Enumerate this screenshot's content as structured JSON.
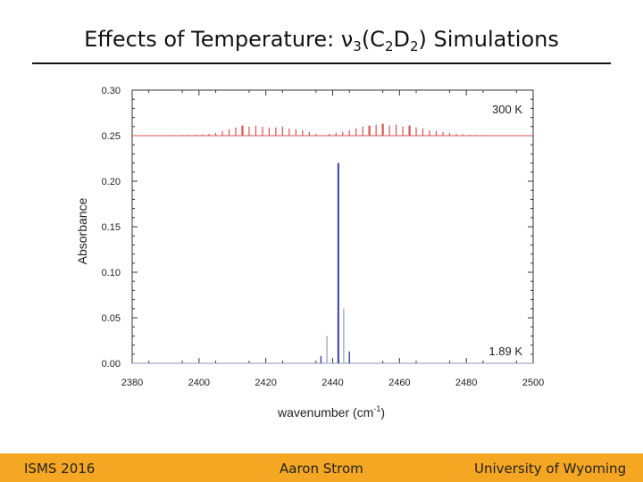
{
  "slide": {
    "title_prefix": "Effects of Temperature: ",
    "title_symbol": "ν",
    "title_sub1": "3",
    "title_mid1": "(C",
    "title_sub2": "2",
    "title_mid2": "D",
    "title_sub3": "2",
    "title_suffix": ") Simulations"
  },
  "footer": {
    "left": "ISMS 2016",
    "center": "Aaron Strom",
    "right": "University of Wyoming"
  },
  "colors": {
    "footer_bg": "#f5a623",
    "series_300K": "#d9534f",
    "series_189K": "#3a3fa6"
  },
  "chart_data": {
    "type": "line",
    "xlabel": "wavenumber (cm",
    "xlabel_sup": "-1",
    "xlabel_end": ")",
    "ylabel": "Absorbance",
    "xlim": [
      2380,
      2500
    ],
    "ylim": [
      0.0,
      0.3
    ],
    "xticks": [
      "2380",
      "2400",
      "2420",
      "2440",
      "2460",
      "2480",
      "2500"
    ],
    "yticks": [
      "0.00",
      "0.05",
      "0.10",
      "0.15",
      "0.20",
      "0.25",
      "0.30"
    ],
    "grid": false,
    "series": [
      {
        "name": "300 K",
        "baseline": 0.25,
        "lines": [
          [
            2389,
            0.0005
          ],
          [
            2391,
            0.0006
          ],
          [
            2393,
            0.0007
          ],
          [
            2395,
            0.0009
          ],
          [
            2397,
            0.001
          ],
          [
            2399,
            0.0012
          ],
          [
            2401,
            0.0014
          ],
          [
            2403,
            0.002
          ],
          [
            2405,
            0.003
          ],
          [
            2407,
            0.005
          ],
          [
            2409,
            0.007
          ],
          [
            2411,
            0.009
          ],
          [
            2413,
            0.011
          ],
          [
            2415,
            0.01
          ],
          [
            2417,
            0.011
          ],
          [
            2419,
            0.01
          ],
          [
            2421,
            0.009
          ],
          [
            2423,
            0.009
          ],
          [
            2425,
            0.01
          ],
          [
            2427,
            0.008
          ],
          [
            2429,
            0.007
          ],
          [
            2431,
            0.006
          ],
          [
            2433,
            0.004
          ],
          [
            2435,
            0.002
          ],
          [
            2439,
            0.002
          ],
          [
            2441,
            0.003
          ],
          [
            2443,
            0.004
          ],
          [
            2445,
            0.006
          ],
          [
            2447,
            0.008
          ],
          [
            2449,
            0.01
          ],
          [
            2451,
            0.011
          ],
          [
            2453,
            0.012
          ],
          [
            2455,
            0.013
          ],
          [
            2457,
            0.011
          ],
          [
            2459,
            0.012
          ],
          [
            2461,
            0.01
          ],
          [
            2463,
            0.011
          ],
          [
            2465,
            0.009
          ],
          [
            2467,
            0.008
          ],
          [
            2469,
            0.006
          ],
          [
            2471,
            0.005
          ],
          [
            2473,
            0.004
          ],
          [
            2475,
            0.003
          ],
          [
            2477,
            0.002
          ],
          [
            2479,
            0.0015
          ],
          [
            2481,
            0.001
          ],
          [
            2483,
            0.0008
          ],
          [
            2485,
            0.0006
          ]
        ],
        "strong_lines": [
          [
            2413,
            0.011
          ],
          [
            2451,
            0.011
          ],
          [
            2455,
            0.013
          ],
          [
            2463,
            0.011
          ]
        ]
      },
      {
        "name": "1.89 K",
        "baseline": 0.0,
        "lines": [
          [
            2436.5,
            0.008
          ],
          [
            2438.3,
            0.03
          ],
          [
            2441.7,
            0.22
          ],
          [
            2443.3,
            0.06
          ],
          [
            2445.0,
            0.013
          ]
        ]
      }
    ]
  }
}
